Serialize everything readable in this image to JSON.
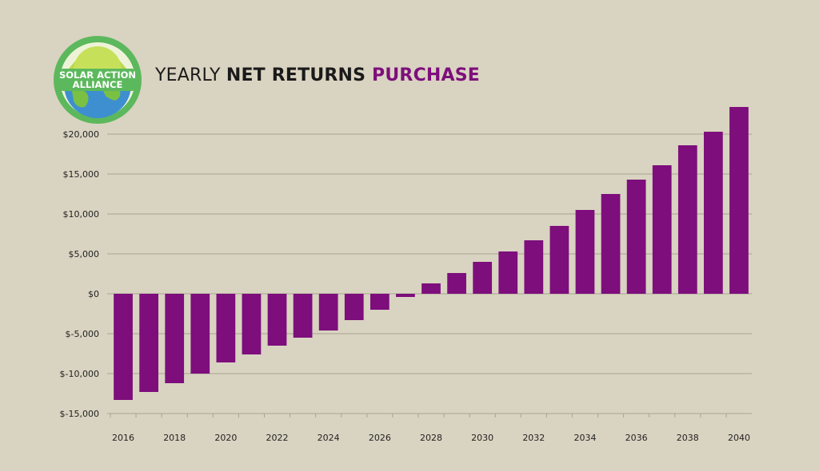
{
  "brand": {
    "logo_text_line1": "SOLAR ACTION",
    "logo_text_line2": "ALLIANCE",
    "colors": {
      "ring": "#5cb85c",
      "sun": "#b8d94a",
      "earth": "#3d8fd0",
      "land": "#7ac143"
    }
  },
  "header": {
    "title_part1": "YEARLY ",
    "title_part2": "NET RETURNS",
    "title_part3": " PURCHASE"
  },
  "colors": {
    "bar": "#7d0e7c",
    "grid": "#a9a394",
    "background": "#d9d3c1"
  },
  "chart_data": {
    "type": "bar",
    "x": [
      2016,
      2017,
      2018,
      2019,
      2020,
      2021,
      2022,
      2023,
      2024,
      2025,
      2026,
      2027,
      2028,
      2029,
      2030,
      2031,
      2032,
      2033,
      2034,
      2035,
      2036,
      2037,
      2038,
      2039,
      2040
    ],
    "values": [
      -13300,
      -12300,
      -11200,
      -10000,
      -8600,
      -7600,
      -6500,
      -5500,
      -4600,
      -3300,
      -2000,
      -400,
      1300,
      2600,
      4000,
      5300,
      6700,
      8500,
      10500,
      12500,
      14300,
      16100,
      18600,
      20300,
      23400
    ],
    "xticks": [
      "2016",
      "2018",
      "2020",
      "2022",
      "2024",
      "2026",
      "2028",
      "2030",
      "2032",
      "2034",
      "2036",
      "2038",
      "2040"
    ],
    "yticks": [
      {
        "value": 20000,
        "label": "$20,000"
      },
      {
        "value": 15000,
        "label": "$15,000"
      },
      {
        "value": 10000,
        "label": "$10,000"
      },
      {
        "value": 5000,
        "label": "$5,000"
      },
      {
        "value": 0,
        "label": "$0"
      },
      {
        "value": -5000,
        "label": "$-5,000"
      },
      {
        "value": -10000,
        "label": "$-10,000"
      },
      {
        "value": -15000,
        "label": "$-15,000"
      }
    ],
    "ylim": [
      -15000,
      23500
    ],
    "grid": true,
    "legend": "none"
  }
}
